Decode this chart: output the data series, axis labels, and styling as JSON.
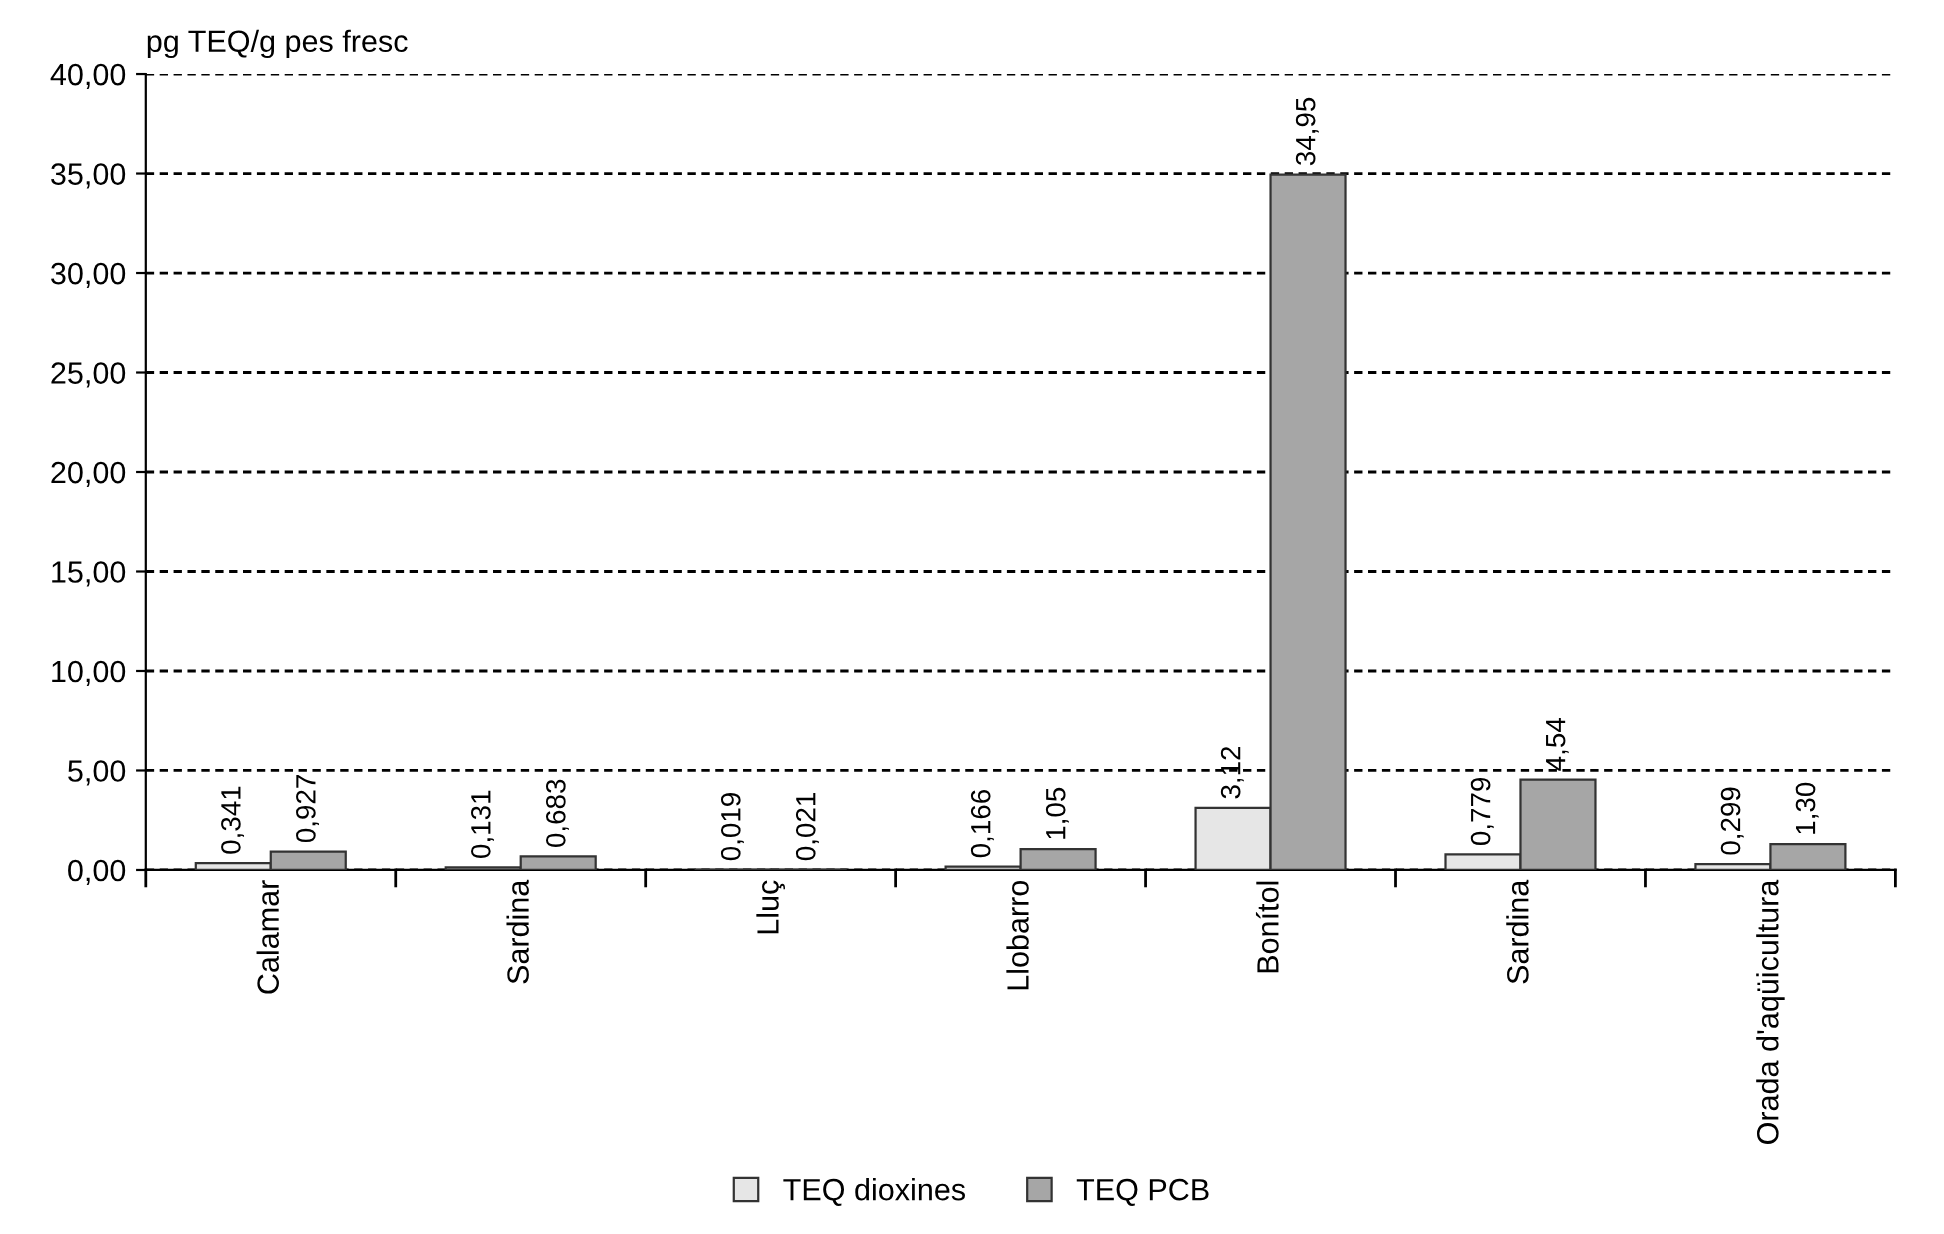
{
  "chart_data": {
    "type": "bar",
    "ylabel": "pg TEQ/g pes fresc",
    "categories": [
      "Calamar",
      "Sardina",
      "Lluç",
      "Llobarro",
      "Bonítol",
      "Sardina",
      "Orada d'aqüicultura"
    ],
    "series": [
      {
        "name": "TEQ dioxines",
        "color": "#e6e6e6",
        "values": [
          0.341,
          0.131,
          0.019,
          0.166,
          3.12,
          0.779,
          0.299
        ],
        "value_labels": [
          "0,341",
          "0,131",
          "0,019",
          "0,166",
          "3,12",
          "0,779",
          "0,299"
        ]
      },
      {
        "name": "TEQ PCB",
        "color": "#a6a6a6",
        "values": [
          0.927,
          0.683,
          0.021,
          1.05,
          34.95,
          4.54,
          1.3
        ],
        "value_labels": [
          "0,927",
          "0,683",
          "0,021",
          "1,05",
          "34,95",
          "4,54",
          "1,30"
        ]
      }
    ],
    "ylim": [
      0,
      40
    ],
    "yticks": [
      {
        "value": 0,
        "label": "0,00"
      },
      {
        "value": 5,
        "label": "5,00"
      },
      {
        "value": 10,
        "label": "10,00"
      },
      {
        "value": 15,
        "label": "15,00"
      },
      {
        "value": 20,
        "label": "20,00"
      },
      {
        "value": 25,
        "label": "25,00"
      },
      {
        "value": 30,
        "label": "30,00"
      },
      {
        "value": 35,
        "label": "35,00"
      },
      {
        "value": 40,
        "label": "40,00"
      }
    ],
    "grid": "y",
    "legend": "bottom"
  }
}
